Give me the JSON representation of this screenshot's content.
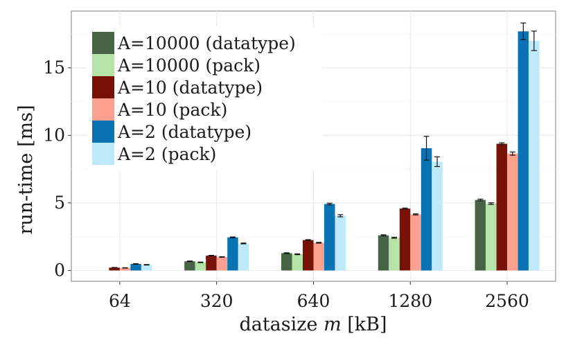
{
  "chart_data": {
    "type": "bar",
    "title": "",
    "xlabel_prefix": "datasize ",
    "xlabel_var": "m",
    "xlabel_suffix": " [kB]",
    "ylabel": "run-time [ms]",
    "categories": [
      "64",
      "320",
      "640",
      "1280",
      "2560"
    ],
    "ylim": [
      -0.8,
      19.2
    ],
    "yticks": [
      0,
      5,
      10,
      15
    ],
    "grid": true,
    "legend_position": "top-left",
    "series": [
      {
        "name": "A=10000 (datatype)",
        "color": "#476447",
        "values": [
          null,
          0.68,
          1.28,
          2.6,
          5.22
        ],
        "err": [
          null,
          0.02,
          0.03,
          0.04,
          0.06
        ]
      },
      {
        "name": "A=10000 (pack)",
        "color": "#b6e3a8",
        "values": [
          null,
          0.6,
          1.2,
          2.42,
          4.95
        ],
        "err": [
          null,
          0.02,
          0.03,
          0.04,
          0.06
        ]
      },
      {
        "name": "A=10 (datatype)",
        "color": "#781206",
        "values": [
          0.21,
          1.1,
          2.25,
          4.58,
          9.38
        ],
        "err": [
          0.01,
          0.02,
          0.03,
          0.04,
          0.07
        ]
      },
      {
        "name": "A=10 (pack)",
        "color": "#fea08f",
        "values": [
          0.19,
          1.0,
          2.05,
          4.15,
          8.65
        ],
        "err": [
          0.01,
          0.02,
          0.03,
          0.04,
          0.12
        ]
      },
      {
        "name": "A=2 (datatype)",
        "color": "#0b73b1",
        "values": [
          0.48,
          2.45,
          4.92,
          9.05,
          17.7
        ],
        "err": [
          0.02,
          0.03,
          0.06,
          0.88,
          0.62
        ]
      },
      {
        "name": "A=2 (pack)",
        "color": "#bee9fb",
        "values": [
          0.42,
          2.0,
          4.05,
          8.05,
          17.0
        ],
        "err": [
          0.02,
          0.03,
          0.08,
          0.36,
          0.72
        ]
      }
    ]
  }
}
